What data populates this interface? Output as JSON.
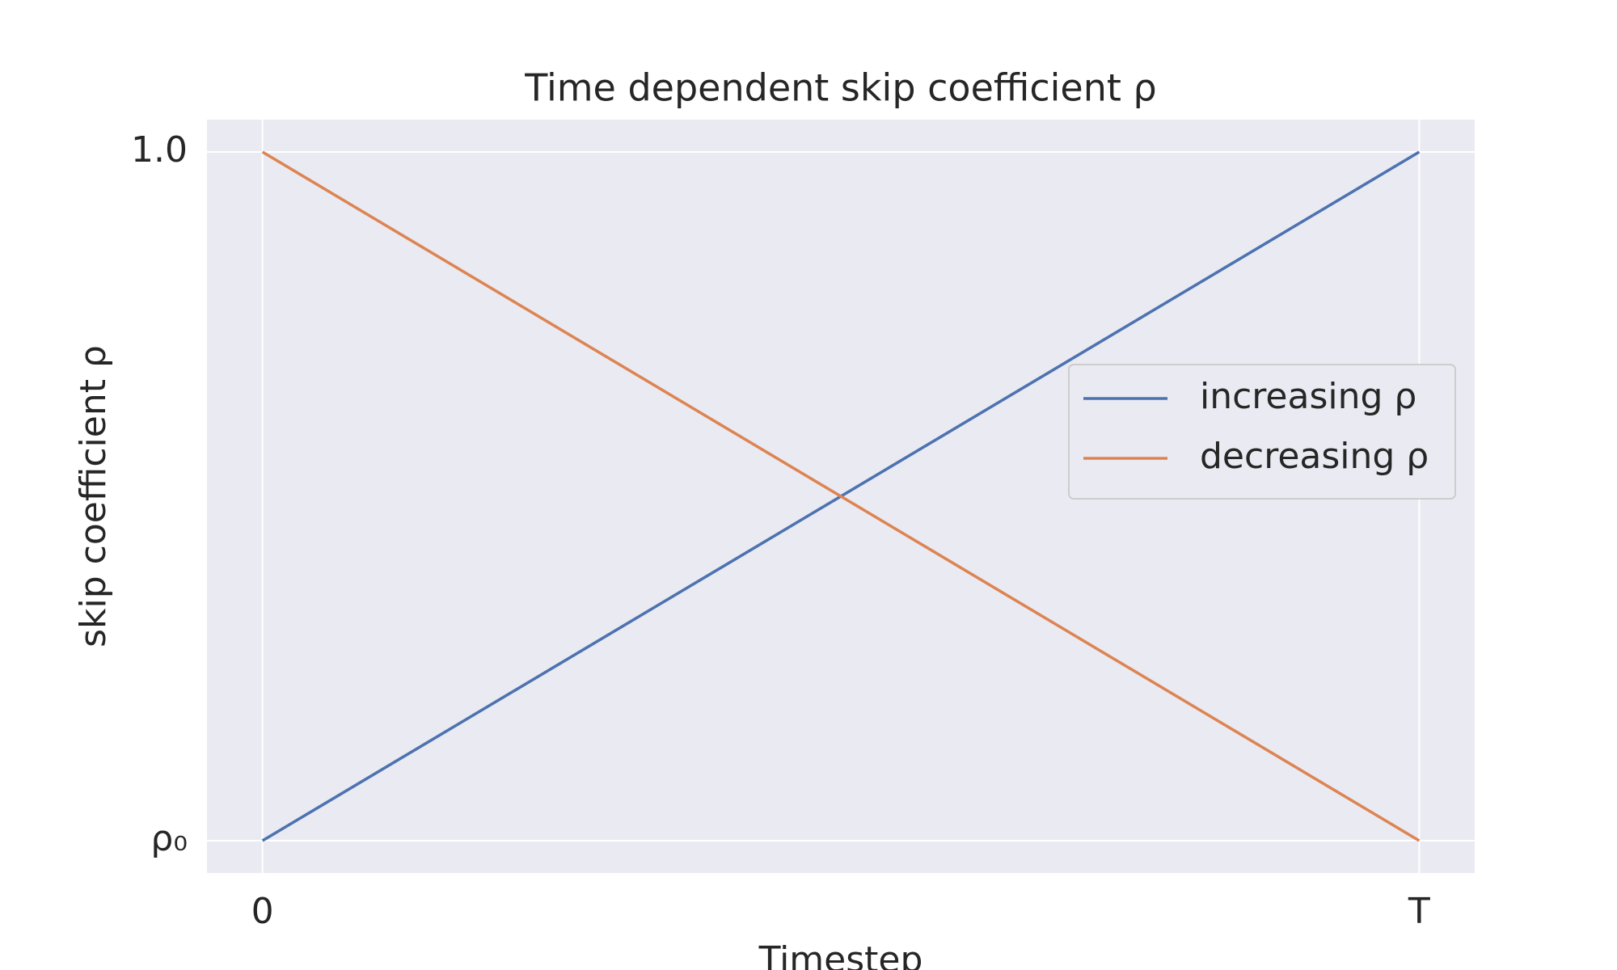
{
  "chart_data": {
    "type": "line",
    "title": "Time dependent skip coefficient ρ",
    "xlabel": "Timestep",
    "ylabel": "skip coefficient ρ",
    "x": [
      0,
      1
    ],
    "series": [
      {
        "name": "increasing ρ",
        "color": "#4c72b0",
        "values": [
          0,
          1
        ]
      },
      {
        "name": "decreasing ρ",
        "color": "#dd8452",
        "values": [
          1,
          0
        ]
      }
    ],
    "xlim": [
      -0.048,
      1.048
    ],
    "ylim": [
      -0.047,
      1.047
    ],
    "xticks": [
      0,
      {
        "value": 1,
        "label": "T"
      }
    ],
    "yticks": [
      {
        "value": 0,
        "label": "ρ₀"
      },
      {
        "value": 1,
        "label": "1.0"
      }
    ],
    "grid": true,
    "legend": "right"
  }
}
